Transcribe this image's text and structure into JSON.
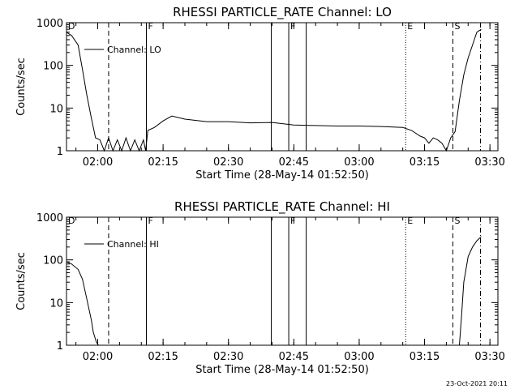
{
  "stamp": "23-Oct-2021 20:11",
  "chart_data": [
    {
      "type": "line",
      "title": "RHESSI PARTICLE_RATE Channel: LO",
      "xlabel": "Start Time (28-May-14 01:52:50)",
      "ylabel": "Counts/sec",
      "y_scale": "log",
      "ylim": [
        1,
        1000
      ],
      "xlim": [
        "01:52:50",
        "03:31:50"
      ],
      "x_ticks": [
        "02:00",
        "02:15",
        "02:30",
        "02:45",
        "03:00",
        "03:15",
        "03:30"
      ],
      "y_ticks": [
        "1",
        "10",
        "100",
        "1000"
      ],
      "legend": {
        "placement": "top-left",
        "entries": [
          "Channel: LO"
        ]
      },
      "grid": false,
      "markers": [
        {
          "label": "D",
          "time": "01:52:50",
          "style": "dotted"
        },
        {
          "label": "",
          "time": "02:02:30",
          "style": "dashed"
        },
        {
          "label": "F",
          "time": "02:11:10",
          "style": "solid"
        },
        {
          "label": "",
          "time": "02:39:50",
          "style": "solid"
        },
        {
          "label": "F",
          "time": "02:43:50",
          "style": "solid"
        },
        {
          "label": "",
          "time": "02:47:50",
          "style": "solid"
        },
        {
          "label": "E",
          "time": "03:10:40",
          "style": "dotted"
        },
        {
          "label": "S",
          "time": "03:21:30",
          "style": "dashed"
        },
        {
          "label": "",
          "time": "03:27:50",
          "style": "dashdot"
        }
      ],
      "series": [
        {
          "name": "Channel: LO",
          "x": [
            "01:52:50",
            "01:54:00",
            "01:55:30",
            "01:56:30",
            "01:57:30",
            "01:58:30",
            "01:59:30",
            "02:00:30",
            "02:01:30",
            "02:02:30",
            "02:03:30",
            "02:04:30",
            "02:05:30",
            "02:06:30",
            "02:07:30",
            "02:08:30",
            "02:09:30",
            "02:10:30",
            "02:11:00",
            "02:11:30",
            "02:13:00",
            "02:15:00",
            "02:17:00",
            "02:20:00",
            "02:25:00",
            "02:30:00",
            "02:35:00",
            "02:40:00",
            "02:45:00",
            "02:50:00",
            "02:55:00",
            "03:00:00",
            "03:05:00",
            "03:10:00",
            "03:12:00",
            "03:14:00",
            "03:15:00",
            "03:16:00",
            "03:17:00",
            "03:18:00",
            "03:19:00",
            "03:20:00",
            "03:21:00",
            "03:22:00",
            "03:23:00",
            "03:24:00",
            "03:25:00",
            "03:26:00",
            "03:27:00",
            "03:28:00"
          ],
          "values": [
            600,
            500,
            300,
            80,
            20,
            6,
            2,
            1.8,
            1,
            2,
            1,
            1.8,
            1,
            2,
            1,
            1.8,
            1,
            1.8,
            1,
            3,
            3.5,
            5,
            6.5,
            5.5,
            4.8,
            4.8,
            4.5,
            4.6,
            4,
            3.9,
            3.8,
            3.8,
            3.7,
            3.5,
            3,
            2.2,
            2,
            1.5,
            2,
            1.8,
            1.5,
            1,
            2,
            2.8,
            15,
            60,
            150,
            300,
            600,
            700
          ]
        }
      ]
    },
    {
      "type": "line",
      "title": "RHESSI PARTICLE_RATE Channel: HI",
      "xlabel": "Start Time (28-May-14 01:52:50)",
      "ylabel": "Counts/sec",
      "y_scale": "log",
      "ylim": [
        1,
        1000
      ],
      "xlim": [
        "01:52:50",
        "03:31:50"
      ],
      "x_ticks": [
        "02:00",
        "02:15",
        "02:30",
        "02:45",
        "03:00",
        "03:15",
        "03:30"
      ],
      "y_ticks": [
        "1",
        "10",
        "100",
        "1000"
      ],
      "legend": {
        "placement": "top-left",
        "entries": [
          "Channel: HI"
        ]
      },
      "grid": false,
      "markers": [
        {
          "label": "D",
          "time": "01:52:50",
          "style": "dotted"
        },
        {
          "label": "",
          "time": "02:02:30",
          "style": "dashed"
        },
        {
          "label": "F",
          "time": "02:11:10",
          "style": "solid"
        },
        {
          "label": "",
          "time": "02:39:50",
          "style": "solid"
        },
        {
          "label": "F",
          "time": "02:43:50",
          "style": "solid"
        },
        {
          "label": "",
          "time": "02:47:50",
          "style": "solid"
        },
        {
          "label": "E",
          "time": "03:10:40",
          "style": "dotted"
        },
        {
          "label": "S",
          "time": "03:21:30",
          "style": "dashed"
        },
        {
          "label": "",
          "time": "03:27:50",
          "style": "dashdot"
        }
      ],
      "series": [
        {
          "name": "Channel: HI",
          "x": [
            "01:52:50",
            "01:54:00",
            "01:55:30",
            "01:56:30",
            "01:57:30",
            "01:58:30",
            "01:59:00",
            "01:59:40",
            "02:00:10",
            "03:23:00",
            "03:23:30",
            "03:24:00",
            "03:25:00",
            "03:26:00",
            "03:27:00",
            "03:28:00"
          ],
          "values": [
            90,
            80,
            60,
            35,
            12,
            4,
            2,
            1.2,
            1,
            1,
            5,
            30,
            120,
            200,
            280,
            350
          ]
        }
      ]
    }
  ]
}
